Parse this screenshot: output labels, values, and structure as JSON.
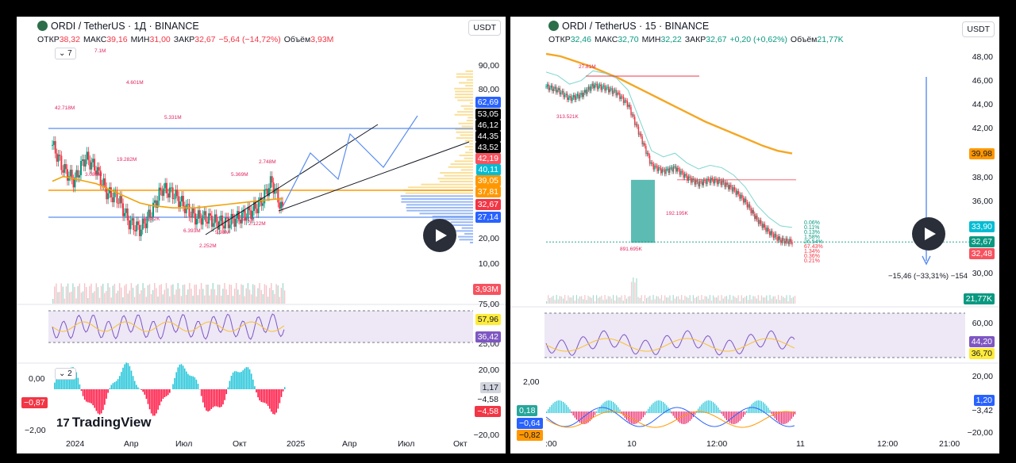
{
  "left": {
    "title": "ORDI / TetherUS · 1Д · BINANCE",
    "ohlc": [
      {
        "label": "ОТКР",
        "value": "38,32"
      },
      {
        "label": "МАКС",
        "value": "39,16"
      },
      {
        "label": "МИН",
        "value": "31,00"
      },
      {
        "label": "ЗАКР",
        "value": "32,67"
      },
      {
        "label": "",
        "value": "−5,64 (−14,72%)"
      },
      {
        "label": "Объём",
        "value": "3,93M"
      }
    ],
    "currency": "USDT",
    "indicator_count": "7",
    "osc_count": "2",
    "price_ticks": [
      "90,00",
      "80,00",
      "20,00",
      "10,00",
      "0,00"
    ],
    "price_tags": [
      {
        "value": "62,69",
        "color": "#2962ff"
      },
      {
        "value": "53,05",
        "color": "#000000"
      },
      {
        "value": "46,12",
        "color": "#000000"
      },
      {
        "value": "44,35",
        "color": "#000000"
      },
      {
        "value": "43,52",
        "color": "#000000"
      },
      {
        "value": "42,19",
        "color": "#f7525f"
      },
      {
        "value": "40,11",
        "color": "#00bcd4"
      },
      {
        "value": "39,05",
        "color": "#ff9800"
      },
      {
        "value": "37,81",
        "color": "#ff9800"
      },
      {
        "value": "32,67",
        "color": "#f23645"
      },
      {
        "value": "27,14",
        "color": "#2962ff"
      }
    ],
    "volume_tag": "3,93M",
    "rsi_ticks": [
      "75,00",
      "25,00"
    ],
    "rsi_tags": [
      {
        "value": "57,96",
        "color": "#ffeb3b"
      },
      {
        "value": "36,42",
        "color": "#7e57c2"
      }
    ],
    "osc_ticks_right": [
      "20,00",
      "0,00",
      "−20,00"
    ],
    "osc_tags_right": [
      {
        "value": "1,17",
        "color": "#d1d4dc"
      },
      {
        "value": "−4,58",
        "color": "#ffffff"
      },
      {
        "value": "−4,58",
        "color": "#f23645"
      }
    ],
    "osc_ticks_left": [
      "0,00",
      "−2,00"
    ],
    "osc_tag_left": "−0,87",
    "x_labels": [
      "2024",
      "Апр",
      "Июл",
      "Окт",
      "2025",
      "Апр",
      "Июл",
      "Окт"
    ],
    "annotations": [
      "42.718M",
      "4.601M",
      "5.331M",
      "3.089M",
      "19.282M",
      "8.882K",
      "6.393M",
      "2.252M",
      "5.369M",
      "2.748M",
      "1.661M",
      "5.98M",
      "2.122M",
      "7.1M"
    ],
    "branding": "TradingView"
  },
  "right": {
    "title": "ORDI / TetherUS · 15 · BINANCE",
    "ohlc": [
      {
        "label": "ОТКР",
        "value": "32,46"
      },
      {
        "label": "МАКС",
        "value": "32,70"
      },
      {
        "label": "МИН",
        "value": "32,22"
      },
      {
        "label": "ЗАКР",
        "value": "32,67"
      },
      {
        "label": "",
        "value": "+0,20 (+0,62%)"
      },
      {
        "label": "Объём",
        "value": "21,77K"
      }
    ],
    "currency": "USDT",
    "price_ticks": [
      "48,00",
      "46,00",
      "44,00",
      "42,00",
      "38,00",
      "36,00",
      "30,00"
    ],
    "price_tags": [
      {
        "value": "39,98",
        "color": "#ff9800"
      },
      {
        "value": "33,90",
        "color": "#00bcd4"
      },
      {
        "value": "32,67",
        "color": "#089981"
      },
      {
        "value": "32,48",
        "color": "#f7525f"
      }
    ],
    "measure_label": "−15,46 (−33,31%) −154",
    "volume_tag": "21,77K",
    "rsi_ticks": [
      "60,00"
    ],
    "rsi_tags": [
      {
        "value": "44,20",
        "color": "#7e57c2"
      },
      {
        "value": "36,70",
        "color": "#ffeb3b"
      }
    ],
    "osc_ticks_right": [
      "20,00",
      "−3,42",
      "−20,00"
    ],
    "osc_tags_right": [
      {
        "value": "1,20",
        "color": "#2962ff"
      }
    ],
    "osc_ticks_left": [
      "2,00"
    ],
    "osc_tags_left": [
      {
        "value": "0,18",
        "color": "#26a69a"
      },
      {
        "value": "−0,64",
        "color": "#2962ff"
      },
      {
        "value": "−0,82",
        "color": "#ff9800"
      }
    ],
    "x_labels": [
      ":00",
      "10",
      "12:00",
      "11",
      "12:00",
      "21:00"
    ],
    "annotations": [
      "27.81M",
      "313.521K",
      "192.195K",
      "891.695K"
    ],
    "fib_labels": [
      "0.06%",
      "0.11%",
      "0.13%",
      "1.58%",
      "26.54%",
      "67.43%",
      "1.34%",
      "0.36%",
      "0.21%"
    ]
  },
  "chart_data": [
    {
      "type": "candlestick",
      "title": "ORDI / TetherUS · 1Д · BINANCE",
      "timeframe": "1D",
      "x_range": [
        "2023-12",
        "2025-11"
      ],
      "ylim": [
        0,
        95
      ],
      "close_approx": [
        60,
        50,
        45,
        55,
        50,
        40,
        38,
        28,
        25,
        32,
        42,
        40,
        35,
        30,
        30,
        28,
        28,
        30,
        32,
        36,
        45,
        32.67
      ],
      "moving_average": [
        45,
        47,
        46,
        45,
        44,
        42,
        40,
        38,
        36,
        35,
        34.5,
        34,
        34,
        34,
        34.5,
        35,
        35.5,
        36,
        36.5,
        37,
        37.5,
        37.81
      ],
      "horizontal_levels": [
        62.69,
        37.81,
        27.14
      ],
      "volume_profile": true,
      "volume_last": "3,93M",
      "rsi": {
        "upper": 75,
        "lower": 25,
        "value": 57.96,
        "ma": 36.42
      }
    },
    {
      "type": "candlestick",
      "title": "ORDI / TetherUS · 15 · BINANCE",
      "timeframe": "15m",
      "ylim": [
        29,
        49
      ],
      "close_approx": [
        45.5,
        45.2,
        44.5,
        44.8,
        45.6,
        45.4,
        45.0,
        44.0,
        41.5,
        39.0,
        38.5,
        38.8,
        38.0,
        37.5,
        37.8,
        37.6,
        37.0,
        36.0,
        34.5,
        33.5,
        32.8,
        32.67
      ],
      "moving_average_200": [
        48.2,
        48.0,
        47.6,
        47.2,
        46.7,
        46.2,
        45.6,
        45.0,
        44.4,
        43.8,
        43.2,
        42.6,
        42.1,
        41.6,
        41.1,
        40.6,
        40.2,
        39.98
      ],
      "measure": "−15,46 (−33,31%)",
      "rsi": {
        "value": 44.2,
        "ma": 36.7
      }
    }
  ]
}
